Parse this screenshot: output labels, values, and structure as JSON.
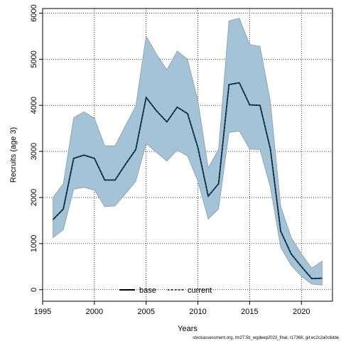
{
  "chart_data": {
    "type": "line",
    "xlabel": "Years",
    "ylabel": "Recruits (age 3)",
    "xlim": [
      1995,
      2023
    ],
    "ylim": [
      -250,
      6100
    ],
    "x_ticks": [
      1995,
      2000,
      2005,
      2010,
      2015,
      2020
    ],
    "y_ticks": [
      0,
      1000,
      2000,
      3000,
      4000,
      5000,
      6000
    ],
    "grid": true,
    "legend_position": "bottom-center",
    "x": [
      1996,
      1997,
      1998,
      1999,
      2000,
      2001,
      2002,
      2003,
      2004,
      2005,
      2006,
      2007,
      2008,
      2009,
      2010,
      2011,
      2012,
      2013,
      2014,
      2015,
      2016,
      2017,
      2018,
      2019,
      2020,
      2021,
      2022
    ],
    "series": [
      {
        "name": "base",
        "style": "solid",
        "color": "#000000",
        "values": [
          1520,
          1750,
          2850,
          2920,
          2850,
          2380,
          2380,
          2720,
          3040,
          4170,
          3880,
          3640,
          3960,
          3820,
          3080,
          2030,
          2300,
          4450,
          4490,
          4010,
          4000,
          3050,
          1270,
          780,
          500,
          240,
          250
        ]
      },
      {
        "name": "current",
        "style": "dotted",
        "color": "#1a4f7a",
        "values": [
          1520,
          1750,
          2850,
          2920,
          2850,
          2380,
          2380,
          2720,
          3040,
          4170,
          3880,
          3640,
          3960,
          3820,
          3080,
          2030,
          2300,
          4450,
          4490,
          4010,
          4000,
          3050,
          1270,
          780,
          500,
          240,
          250
        ]
      }
    ],
    "band": {
      "color": "#a3c4d6",
      "stroke": "#8a9aa4",
      "upper": [
        2000,
        2300,
        3730,
        3860,
        3720,
        3120,
        3120,
        3560,
        3980,
        5500,
        5110,
        4770,
        5180,
        5000,
        4100,
        2640,
        3050,
        5830,
        5890,
        5320,
        5280,
        4080,
        1810,
        1140,
        780,
        470,
        620
      ],
      "lower": [
        1130,
        1300,
        2180,
        2220,
        2160,
        1800,
        1820,
        2080,
        2350,
        3170,
        2980,
        2790,
        3030,
        2900,
        2350,
        1530,
        1750,
        3410,
        3440,
        3050,
        3040,
        2220,
        920,
        530,
        290,
        120,
        100
      ]
    },
    "footer": "stockassessment.org, tm27.5b_wgdeep2023_final, r17368, git:ec2c2a0c6dde"
  }
}
